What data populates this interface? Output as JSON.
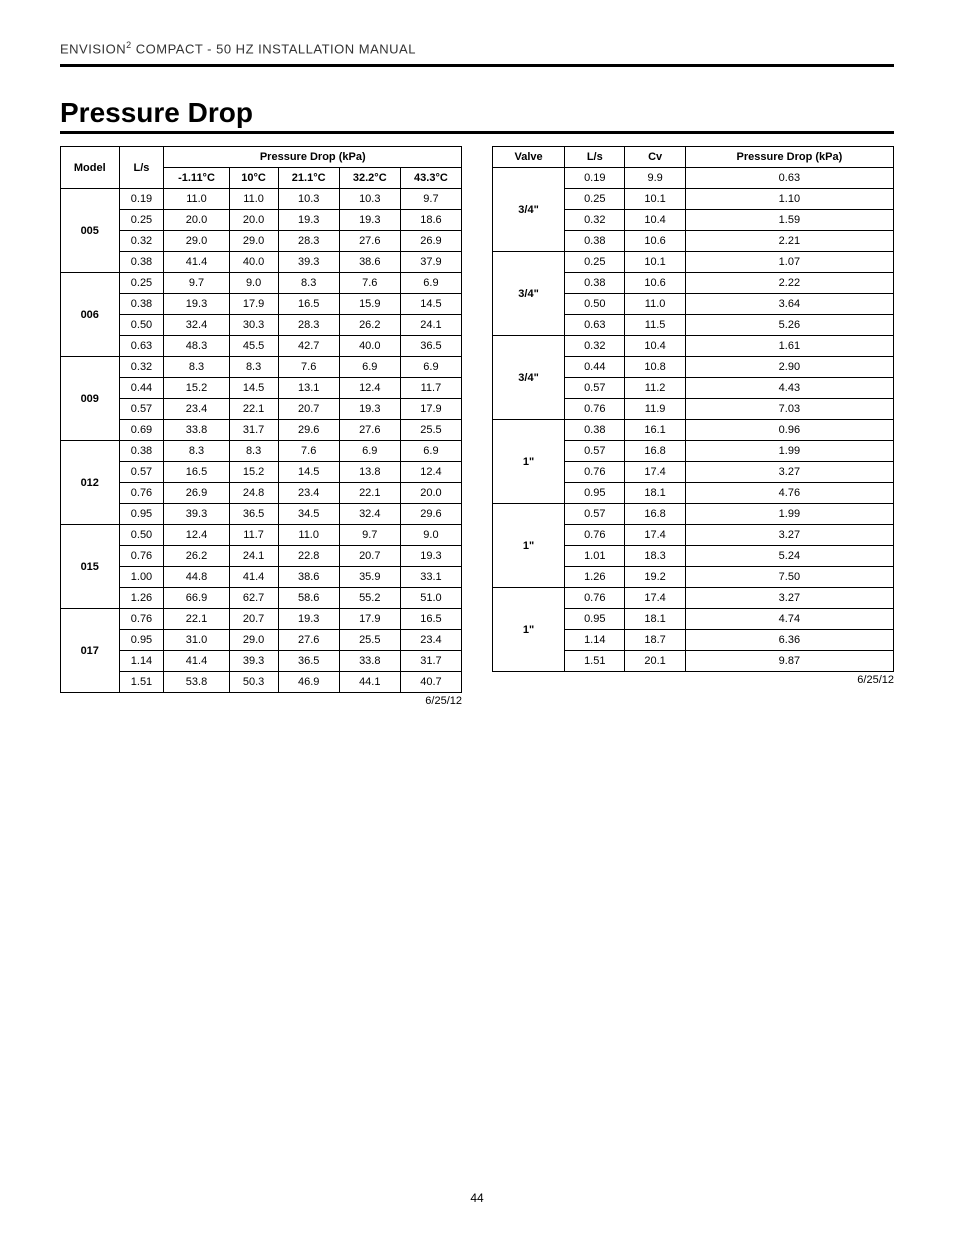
{
  "header_prefix": "ENVISION",
  "header_sup": "2",
  "header_suffix": " COMPACT - 50 HZ INSTALLATION MANUAL",
  "title": "Pressure Drop",
  "date": "6/25/12",
  "page_number": "44",
  "table1": {
    "col_model": "Model",
    "col_ls": "L/s",
    "col_group": "Pressure Drop (kPa)",
    "temp_cols": [
      "-1.11°C",
      "10°C",
      "21.1°C",
      "32.2°C",
      "43.3°C"
    ],
    "groups": [
      {
        "model": "005",
        "rows": [
          [
            "0.19",
            "11.0",
            "11.0",
            "10.3",
            "10.3",
            "9.7"
          ],
          [
            "0.25",
            "20.0",
            "20.0",
            "19.3",
            "19.3",
            "18.6"
          ],
          [
            "0.32",
            "29.0",
            "29.0",
            "28.3",
            "27.6",
            "26.9"
          ],
          [
            "0.38",
            "41.4",
            "40.0",
            "39.3",
            "38.6",
            "37.9"
          ]
        ]
      },
      {
        "model": "006",
        "rows": [
          [
            "0.25",
            "9.7",
            "9.0",
            "8.3",
            "7.6",
            "6.9"
          ],
          [
            "0.38",
            "19.3",
            "17.9",
            "16.5",
            "15.9",
            "14.5"
          ],
          [
            "0.50",
            "32.4",
            "30.3",
            "28.3",
            "26.2",
            "24.1"
          ],
          [
            "0.63",
            "48.3",
            "45.5",
            "42.7",
            "40.0",
            "36.5"
          ]
        ]
      },
      {
        "model": "009",
        "rows": [
          [
            "0.32",
            "8.3",
            "8.3",
            "7.6",
            "6.9",
            "6.9"
          ],
          [
            "0.44",
            "15.2",
            "14.5",
            "13.1",
            "12.4",
            "11.7"
          ],
          [
            "0.57",
            "23.4",
            "22.1",
            "20.7",
            "19.3",
            "17.9"
          ],
          [
            "0.69",
            "33.8",
            "31.7",
            "29.6",
            "27.6",
            "25.5"
          ]
        ]
      },
      {
        "model": "012",
        "rows": [
          [
            "0.38",
            "8.3",
            "8.3",
            "7.6",
            "6.9",
            "6.9"
          ],
          [
            "0.57",
            "16.5",
            "15.2",
            "14.5",
            "13.8",
            "12.4"
          ],
          [
            "0.76",
            "26.9",
            "24.8",
            "23.4",
            "22.1",
            "20.0"
          ],
          [
            "0.95",
            "39.3",
            "36.5",
            "34.5",
            "32.4",
            "29.6"
          ]
        ]
      },
      {
        "model": "015",
        "rows": [
          [
            "0.50",
            "12.4",
            "11.7",
            "11.0",
            "9.7",
            "9.0"
          ],
          [
            "0.76",
            "26.2",
            "24.1",
            "22.8",
            "20.7",
            "19.3"
          ],
          [
            "1.00",
            "44.8",
            "41.4",
            "38.6",
            "35.9",
            "33.1"
          ],
          [
            "1.26",
            "66.9",
            "62.7",
            "58.6",
            "55.2",
            "51.0"
          ]
        ]
      },
      {
        "model": "017",
        "rows": [
          [
            "0.76",
            "22.1",
            "20.7",
            "19.3",
            "17.9",
            "16.5"
          ],
          [
            "0.95",
            "31.0",
            "29.0",
            "27.6",
            "25.5",
            "23.4"
          ],
          [
            "1.14",
            "41.4",
            "39.3",
            "36.5",
            "33.8",
            "31.7"
          ],
          [
            "1.51",
            "53.8",
            "50.3",
            "46.9",
            "44.1",
            "40.7"
          ]
        ]
      }
    ]
  },
  "table2": {
    "col_valve": "Valve",
    "col_ls": "L/s",
    "col_cv": "Cv",
    "col_pd": "Pressure Drop (kPa)",
    "groups": [
      {
        "valve": "3/4\"",
        "rows": [
          [
            "0.19",
            "9.9",
            "0.63"
          ],
          [
            "0.25",
            "10.1",
            "1.10"
          ],
          [
            "0.32",
            "10.4",
            "1.59"
          ],
          [
            "0.38",
            "10.6",
            "2.21"
          ]
        ]
      },
      {
        "valve": "3/4\"",
        "rows": [
          [
            "0.25",
            "10.1",
            "1.07"
          ],
          [
            "0.38",
            "10.6",
            "2.22"
          ],
          [
            "0.50",
            "11.0",
            "3.64"
          ],
          [
            "0.63",
            "11.5",
            "5.26"
          ]
        ]
      },
      {
        "valve": "3/4\"",
        "rows": [
          [
            "0.32",
            "10.4",
            "1.61"
          ],
          [
            "0.44",
            "10.8",
            "2.90"
          ],
          [
            "0.57",
            "11.2",
            "4.43"
          ],
          [
            "0.76",
            "11.9",
            "7.03"
          ]
        ]
      },
      {
        "valve": "1\"",
        "rows": [
          [
            "0.38",
            "16.1",
            "0.96"
          ],
          [
            "0.57",
            "16.8",
            "1.99"
          ],
          [
            "0.76",
            "17.4",
            "3.27"
          ],
          [
            "0.95",
            "18.1",
            "4.76"
          ]
        ]
      },
      {
        "valve": "1\"",
        "rows": [
          [
            "0.57",
            "16.8",
            "1.99"
          ],
          [
            "0.76",
            "17.4",
            "3.27"
          ],
          [
            "1.01",
            "18.3",
            "5.24"
          ],
          [
            "1.26",
            "19.2",
            "7.50"
          ]
        ]
      },
      {
        "valve": "1\"",
        "rows": [
          [
            "0.76",
            "17.4",
            "3.27"
          ],
          [
            "0.95",
            "18.1",
            "4.74"
          ],
          [
            "1.14",
            "18.7",
            "6.36"
          ],
          [
            "1.51",
            "20.1",
            "9.87"
          ]
        ]
      }
    ]
  }
}
